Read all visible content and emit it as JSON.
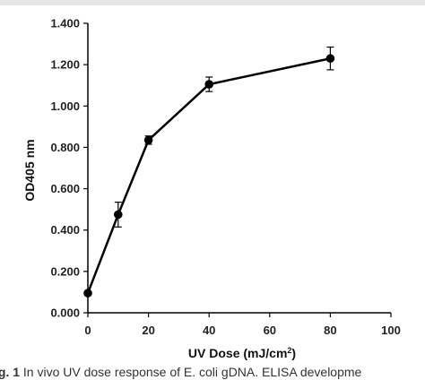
{
  "chart_data": {
    "type": "line",
    "title": "",
    "xlabel": "UV Dose (mJ/cm",
    "xlabel_sup": "2",
    "xlabel_close": ")",
    "ylabel": "OD405 nm",
    "xlim": [
      0,
      100
    ],
    "ylim": [
      0,
      1.4
    ],
    "xticks": [
      "0",
      "20",
      "40",
      "60",
      "80",
      "100"
    ],
    "yticks": [
      "0.000",
      "0.200",
      "0.400",
      "0.600",
      "0.800",
      "1.000",
      "1.200",
      "1.400"
    ],
    "grid": false,
    "legend": "none",
    "marker": "circle",
    "line_color": "#000000",
    "series": [
      {
        "x": [
          0,
          10,
          20,
          40,
          80
        ],
        "y": [
          0.095,
          0.475,
          0.835,
          1.105,
          1.23
        ],
        "err": [
          0.0,
          0.06,
          0.02,
          0.035,
          0.055
        ]
      }
    ]
  },
  "caption": {
    "label": "ig. 1",
    "text": "In vivo UV dose response of E. coli gDNA. ELISA developme"
  }
}
